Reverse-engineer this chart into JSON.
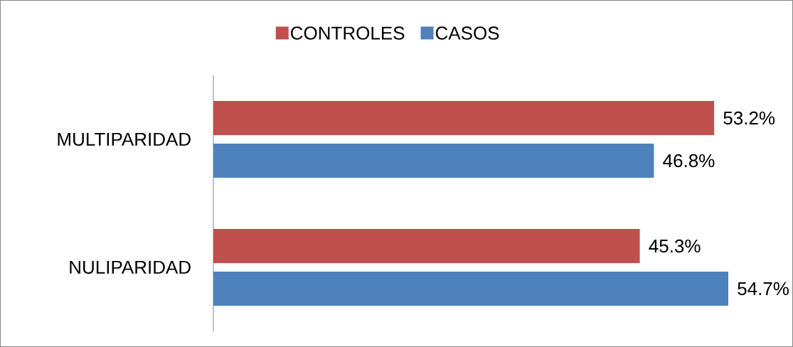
{
  "chart_data": {
    "type": "bar",
    "orientation": "horizontal",
    "categories": [
      "MULTIPARIDAD",
      "NULIPARIDAD"
    ],
    "series": [
      {
        "name": "CONTROLES",
        "color": "#c0504d",
        "values": [
          53.2,
          45.3
        ],
        "value_labels": [
          "53.2%",
          "45.3%"
        ]
      },
      {
        "name": "CASOS",
        "color": "#4f81bd",
        "values": [
          46.8,
          54.7
        ],
        "value_labels": [
          "46.8%",
          "54.7%"
        ]
      }
    ],
    "tick_labels": "y",
    "legend": "top"
  }
}
